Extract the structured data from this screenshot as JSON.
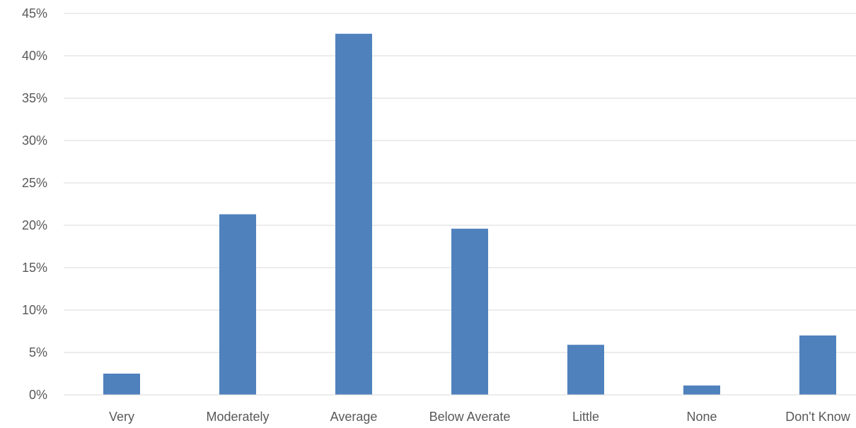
{
  "chart_data": {
    "type": "bar",
    "title": "",
    "xlabel": "",
    "ylabel": "",
    "categories": [
      "Very",
      "Moderately",
      "Average",
      "Below Averate",
      "Little",
      "None",
      "Don't Know"
    ],
    "values": [
      2.5,
      21.3,
      42.6,
      19.6,
      5.9,
      1.1,
      7.0
    ],
    "ylim": [
      0,
      45
    ],
    "ytick_values": [
      0,
      5,
      10,
      15,
      20,
      25,
      30,
      35,
      40,
      45
    ],
    "ytick_labels": [
      "0%",
      "5%",
      "10%",
      "15%",
      "20%",
      "25%",
      "30%",
      "35%",
      "40%",
      "45%"
    ],
    "value_unit": "%",
    "grid": true,
    "legend": "none",
    "colors": {
      "bar": "#4f81bd",
      "grid": "#d9d9d9",
      "axis": "#d9d9d9",
      "text": "#595959"
    }
  }
}
